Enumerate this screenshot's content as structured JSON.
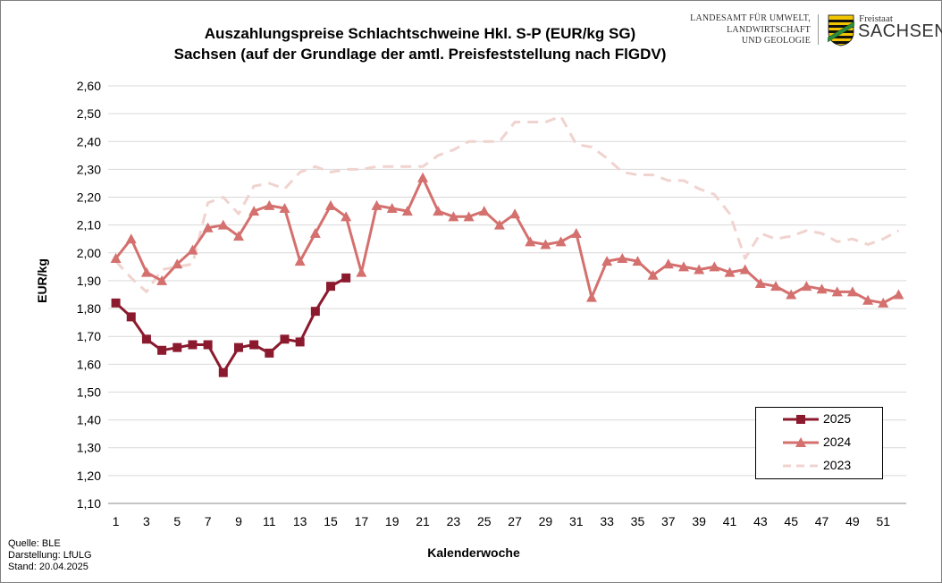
{
  "header": {
    "title_line1": "Auszahlungspreise Schlachtschweine Hkl. S-P (EUR/kg SG)",
    "title_line2": "Sachsen (auf der Grundlage der amtl. Preisfeststellung nach FlGDV)"
  },
  "logo": {
    "agency_line1": "LANDESAMT FÜR UMWELT,",
    "agency_line2": "LANDWIRTSCHAFT",
    "agency_line3": "UND GEOLOGIE",
    "state_small": "Freistaat",
    "state_big": "SACHSEN",
    "crest": "saxony-coat-of-arms"
  },
  "footer": {
    "source": "Quelle: BLE",
    "drawn_by": "Darstellung: LfULG",
    "as_of": "Stand: 20.04.2025"
  },
  "chart_data": {
    "type": "line",
    "title": "Auszahlungspreise Schlachtschweine Hkl. S-P (EUR/kg SG) Sachsen (auf der Grundlage der amtl. Preisfeststellung nach FlGDV)",
    "xlabel": "Kalenderwoche",
    "ylabel": "EUR/kg",
    "ylim": [
      1.1,
      2.6
    ],
    "xlim": [
      1,
      52
    ],
    "y_ticks": [
      "1,10",
      "1,20",
      "1,30",
      "1,40",
      "1,50",
      "1,60",
      "1,70",
      "1,80",
      "1,90",
      "2,00",
      "2,10",
      "2,20",
      "2,30",
      "2,40",
      "2,50",
      "2,60"
    ],
    "x_ticks": [
      "1",
      "3",
      "5",
      "7",
      "9",
      "11",
      "13",
      "15",
      "17",
      "19",
      "21",
      "23",
      "25",
      "27",
      "29",
      "31",
      "33",
      "35",
      "37",
      "39",
      "41",
      "43",
      "45",
      "47",
      "49",
      "51"
    ],
    "grid": "horizontal",
    "legend_position": "bottom-right",
    "series": [
      {
        "name": "2025",
        "color": "#8b1a2e",
        "marker": "square",
        "style": "solid",
        "x": [
          1,
          2,
          3,
          4,
          5,
          6,
          7,
          8,
          9,
          10,
          11,
          12,
          13,
          14,
          15,
          16
        ],
        "values": [
          1.82,
          1.77,
          1.69,
          1.65,
          1.66,
          1.67,
          1.67,
          1.57,
          1.66,
          1.67,
          1.64,
          1.69,
          1.68,
          1.79,
          1.88,
          1.91
        ]
      },
      {
        "name": "2024",
        "color": "#d4706e",
        "marker": "triangle",
        "style": "solid",
        "x": [
          1,
          2,
          3,
          4,
          5,
          6,
          7,
          8,
          9,
          10,
          11,
          12,
          13,
          14,
          15,
          16,
          17,
          18,
          19,
          20,
          21,
          22,
          23,
          24,
          25,
          26,
          27,
          28,
          29,
          30,
          31,
          32,
          33,
          34,
          35,
          36,
          37,
          38,
          39,
          40,
          41,
          42,
          43,
          44,
          45,
          46,
          47,
          48,
          49,
          50,
          51,
          52
        ],
        "values": [
          1.98,
          2.05,
          1.93,
          1.9,
          1.96,
          2.01,
          2.09,
          2.1,
          2.06,
          2.15,
          2.17,
          2.16,
          1.97,
          2.07,
          2.17,
          2.13,
          1.93,
          2.17,
          2.16,
          2.15,
          2.27,
          2.15,
          2.13,
          2.13,
          2.15,
          2.1,
          2.14,
          2.04,
          2.03,
          2.04,
          2.07,
          1.84,
          1.97,
          1.98,
          1.97,
          1.92,
          1.96,
          1.95,
          1.94,
          1.95,
          1.93,
          1.94,
          1.89,
          1.88,
          1.85,
          1.88,
          1.87,
          1.86,
          1.86,
          1.83,
          1.82,
          1.85
        ]
      },
      {
        "name": "2023",
        "color": "#f0d3cf",
        "marker": "none",
        "style": "dashed",
        "x": [
          1,
          2,
          3,
          4,
          5,
          6,
          7,
          8,
          9,
          10,
          11,
          12,
          13,
          14,
          15,
          16,
          17,
          18,
          19,
          20,
          21,
          22,
          23,
          24,
          25,
          26,
          27,
          28,
          29,
          30,
          31,
          32,
          33,
          34,
          35,
          36,
          37,
          38,
          39,
          40,
          41,
          42,
          43,
          44,
          45,
          46,
          47,
          48,
          49,
          50,
          51,
          52
        ],
        "values": [
          1.97,
          1.91,
          1.86,
          1.94,
          1.95,
          1.96,
          2.18,
          2.2,
          2.14,
          2.24,
          2.25,
          2.23,
          2.29,
          2.31,
          2.29,
          2.3,
          2.3,
          2.31,
          2.31,
          2.31,
          2.31,
          2.35,
          2.37,
          2.4,
          2.4,
          2.4,
          2.47,
          2.47,
          2.47,
          2.49,
          2.39,
          2.38,
          2.34,
          2.29,
          2.28,
          2.28,
          2.26,
          2.26,
          2.23,
          2.21,
          2.14,
          1.98,
          2.07,
          2.05,
          2.06,
          2.08,
          2.07,
          2.04,
          2.05,
          2.03,
          2.05,
          2.08
        ]
      }
    ]
  }
}
